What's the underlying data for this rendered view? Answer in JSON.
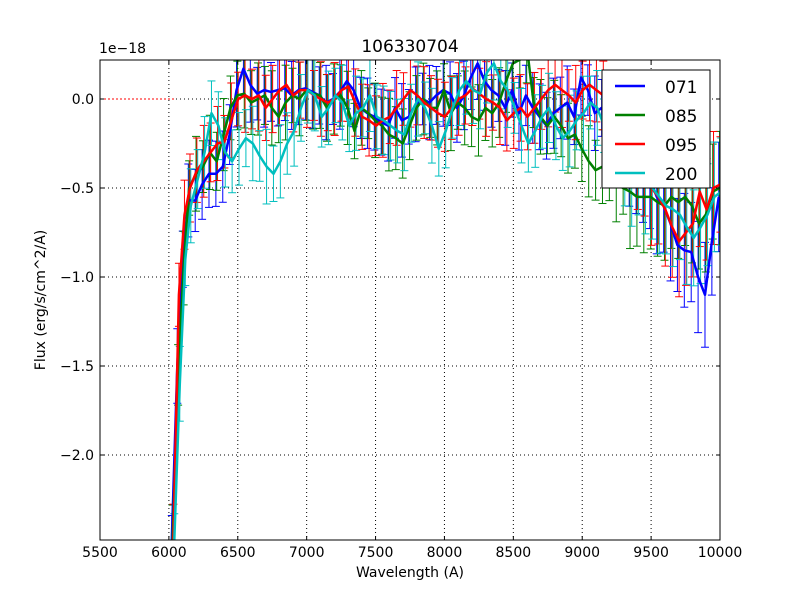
{
  "chart_data": {
    "type": "line",
    "title": "106330704",
    "xlabel": "Wavelength (A)",
    "ylabel": "Flux (erg/s/cm^2/A)",
    "y_offset_label": "1e−18",
    "xlim": [
      5500,
      10000
    ],
    "ylim": [
      -2.48,
      0.22
    ],
    "x_ticks": [
      5500,
      6000,
      6500,
      7000,
      7500,
      8000,
      8500,
      9000,
      9500,
      10000
    ],
    "x_tick_labels": [
      "5500",
      "6000",
      "6500",
      "7000",
      "7500",
      "8000",
      "8500",
      "9000",
      "9500",
      "10000"
    ],
    "y_ticks": [
      0.0,
      -0.5,
      -1.0,
      -1.5,
      -2.0
    ],
    "y_tick_labels": [
      "0.0",
      "−0.5",
      "−1.0",
      "−1.5",
      "−2.0"
    ],
    "grid": true,
    "legend_position": "upper right",
    "zero_line": {
      "color": "#ff0000",
      "style": "dotted",
      "x_range": [
        5500,
        6050
      ]
    },
    "x": [
      6030,
      6070,
      6110,
      6150,
      6200,
      6250,
      6300,
      6350,
      6400,
      6450,
      6500,
      6550,
      6600,
      6650,
      6700,
      6750,
      6800,
      6850,
      6900,
      6950,
      7000,
      7050,
      7100,
      7150,
      7200,
      7250,
      7300,
      7350,
      7400,
      7450,
      7500,
      7550,
      7600,
      7650,
      7700,
      7750,
      7800,
      7850,
      7900,
      7950,
      8000,
      8050,
      8100,
      8150,
      8200,
      8250,
      8300,
      8350,
      8400,
      8450,
      8500,
      8550,
      8600,
      8650,
      8700,
      8750,
      8800,
      8850,
      8900,
      8950,
      9000,
      9050,
      9100,
      9150,
      9200,
      9250,
      9300,
      9350,
      9400,
      9450,
      9500,
      9550,
      9600,
      9650,
      9700,
      9750,
      9800,
      9850,
      9900,
      9950,
      10000
    ],
    "series": [
      {
        "name": "071",
        "color": "#0000ff",
        "values": [
          -2.48,
          -1.5,
          -0.9,
          -0.57,
          -0.57,
          -0.48,
          -0.42,
          -0.42,
          -0.38,
          -0.2,
          0.05,
          0.17,
          0.08,
          0.03,
          0.05,
          0.04,
          0.05,
          0.06,
          0.02,
          0.05,
          0.06,
          0.04,
          0.02,
          -0.02,
          0.0,
          0.04,
          0.1,
          0.05,
          -0.05,
          -0.08,
          -0.1,
          -0.13,
          -0.15,
          -0.05,
          -0.12,
          -0.1,
          -0.03,
          0.0,
          -0.02,
          0.02,
          0.05,
          0.03,
          -0.05,
          0.02,
          0.12,
          0.2,
          0.1,
          0.05,
          0.02,
          -0.05,
          0.05,
          -0.08,
          0.02,
          -0.05,
          -0.1,
          -0.15,
          -0.08,
          -0.05,
          -0.02,
          -0.1,
          0.12,
          0.05,
          -0.08,
          -0.05,
          -0.12,
          -0.2,
          -0.25,
          -0.3,
          -0.35,
          -0.38,
          -0.45,
          -0.55,
          -0.6,
          -0.7,
          -0.82,
          -0.85,
          -0.86,
          -1.0,
          -1.1,
          -0.8,
          -0.55
        ]
      },
      {
        "name": "085",
        "color": "#008000",
        "values": [
          -2.48,
          -1.55,
          -0.95,
          -0.5,
          -0.42,
          -0.38,
          -0.3,
          -0.35,
          -0.2,
          -0.05,
          0.02,
          0.03,
          -0.02,
          0.0,
          0.02,
          -0.05,
          -0.1,
          -0.02,
          0.02,
          0.0,
          0.05,
          0.03,
          0.02,
          -0.05,
          0.0,
          0.02,
          -0.05,
          -0.18,
          -0.05,
          -0.08,
          -0.12,
          -0.15,
          -0.2,
          -0.22,
          -0.25,
          -0.15,
          -0.05,
          0.0,
          -0.05,
          -0.05,
          0.05,
          -0.08,
          -0.02,
          -0.05,
          -0.1,
          -0.12,
          -0.05,
          -0.08,
          -0.02,
          0.1,
          0.2,
          0.22,
          0.3,
          -0.02,
          -0.1,
          -0.15,
          -0.1,
          -0.15,
          -0.22,
          -0.2,
          -0.28,
          -0.35,
          -0.4,
          -0.38,
          -0.42,
          -0.48,
          -0.5,
          -0.52,
          -0.55,
          -0.55,
          -0.55,
          -0.58,
          -0.6,
          -0.55,
          -0.58,
          -0.55,
          -0.6,
          -0.7,
          -0.65,
          -0.52,
          -0.5
        ]
      },
      {
        "name": "095",
        "color": "#ff0000",
        "values": [
          -2.48,
          -1.1,
          -0.65,
          -0.5,
          -0.4,
          -0.35,
          -0.3,
          -0.25,
          -0.24,
          -0.12,
          0.0,
          0.02,
          0.0,
          0.02,
          -0.05,
          0.0,
          0.05,
          0.08,
          0.02,
          0.05,
          0.05,
          0.02,
          0.0,
          -0.02,
          0.0,
          0.05,
          0.07,
          -0.02,
          -0.1,
          -0.12,
          -0.15,
          -0.12,
          -0.1,
          -0.05,
          0.0,
          0.05,
          0.02,
          -0.02,
          -0.05,
          -0.08,
          -0.1,
          -0.05,
          0.0,
          0.02,
          0.06,
          0.03,
          0.0,
          -0.02,
          -0.05,
          -0.12,
          -0.08,
          -0.05,
          -0.1,
          -0.05,
          0.0,
          0.05,
          0.08,
          0.05,
          0.02,
          -0.02,
          0.05,
          0.08,
          0.05,
          0.02,
          -0.05,
          -0.1,
          -0.15,
          -0.2,
          -0.3,
          -0.4,
          -0.5,
          -0.55,
          -0.62,
          -0.72,
          -0.8,
          -0.75,
          -0.7,
          -0.52,
          -0.62,
          -0.5,
          -0.48
        ]
      },
      {
        "name": "200",
        "color": "#00bfbf",
        "values": [
          -2.48,
          -1.6,
          -0.9,
          -0.6,
          -0.45,
          -0.3,
          -0.08,
          -0.15,
          -0.3,
          -0.35,
          -0.28,
          -0.22,
          -0.25,
          -0.32,
          -0.38,
          -0.42,
          -0.35,
          -0.25,
          -0.18,
          -0.05,
          0.05,
          0.02,
          -0.1,
          -0.05,
          0.02,
          -0.02,
          -0.15,
          -0.08,
          -0.05,
          0.02,
          -0.1,
          -0.12,
          -0.15,
          -0.18,
          -0.2,
          -0.08,
          0.0,
          -0.05,
          -0.15,
          -0.28,
          -0.18,
          -0.05,
          0.05,
          0.1,
          0.05,
          0.03,
          0.15,
          0.2,
          0.1,
          0.05,
          -0.05,
          -0.15,
          -0.25,
          -0.18,
          -0.1,
          -0.05,
          -0.15,
          -0.22,
          -0.18,
          -0.12,
          -0.08,
          -0.02,
          -0.05,
          -0.15,
          -0.25,
          -0.3,
          -0.4,
          -0.42,
          -0.35,
          -0.45,
          -0.5,
          -0.55,
          -0.6,
          -0.62,
          -0.65,
          -0.72,
          -0.78,
          -0.72,
          -0.65,
          -0.55,
          -0.52
        ]
      }
    ],
    "error_bar_halfwidth": 0.14
  },
  "legend": {
    "items": [
      {
        "label": "071",
        "color": "#0000ff"
      },
      {
        "label": "085",
        "color": "#008000"
      },
      {
        "label": "095",
        "color": "#ff0000"
      },
      {
        "label": "200",
        "color": "#00bfbf"
      }
    ]
  }
}
